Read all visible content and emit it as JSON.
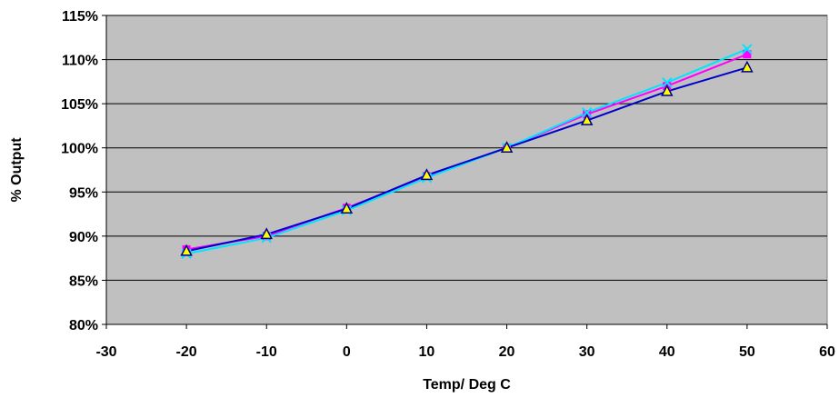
{
  "chart_data": {
    "type": "line",
    "title": "",
    "xlabel": "Temp/ Deg C",
    "ylabel": "% Output",
    "xlim": [
      -30,
      60
    ],
    "ylim": [
      80,
      115
    ],
    "x_ticks": [
      -30,
      -20,
      -10,
      0,
      10,
      20,
      30,
      40,
      50,
      60
    ],
    "y_ticks": [
      80,
      85,
      90,
      95,
      100,
      105,
      110,
      115
    ],
    "y_tick_suffix": "%",
    "grid": "horizontal",
    "legend": "none",
    "plot_background": "#C0C0C0",
    "x": [
      -20,
      -10,
      0,
      10,
      20,
      30,
      40,
      50
    ],
    "series": [
      {
        "values": [
          88.5,
          90.0,
          93.2,
          96.8,
          100.0,
          103.8,
          107.0,
          110.6
        ],
        "color": "#FF00FF",
        "marker": "square"
      },
      {
        "values": [
          88.0,
          89.8,
          92.9,
          96.6,
          100.0,
          104.0,
          107.4,
          111.2
        ],
        "color": "#00E5FF",
        "marker": "x"
      },
      {
        "values": [
          88.3,
          90.2,
          93.1,
          96.9,
          100.0,
          103.1,
          106.4,
          109.1
        ],
        "color": "#0000CC",
        "marker": "triangle"
      }
    ]
  }
}
